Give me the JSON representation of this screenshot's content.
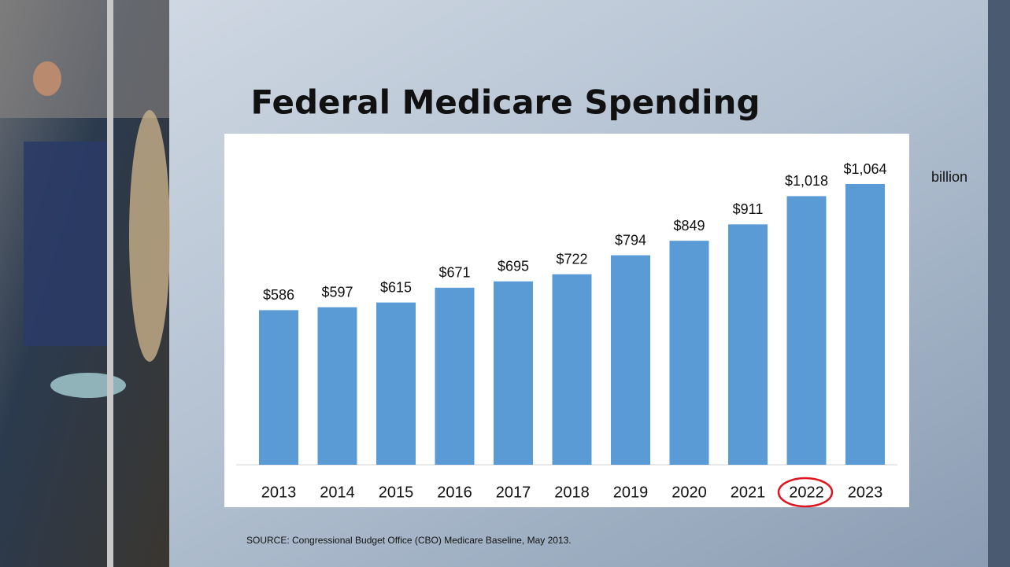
{
  "chart_data": {
    "type": "bar",
    "title": "Federal Medicare Spending",
    "categories": [
      "2013",
      "2014",
      "2015",
      "2016",
      "2017",
      "2018",
      "2019",
      "2020",
      "2021",
      "2022",
      "2023"
    ],
    "values": [
      586,
      597,
      615,
      671,
      695,
      722,
      794,
      849,
      911,
      1018,
      1064
    ],
    "value_labels": [
      "$586",
      "$597",
      "$615",
      "$671",
      "$695",
      "$722",
      "$794",
      "$849",
      "$911",
      "$1,018",
      "$1,064"
    ],
    "color": "#5b9bd5",
    "unit_note": "billion",
    "source": "SOURCE: Congressional Budget Office (CBO) Medicare Baseline, May 2013."
  }
}
